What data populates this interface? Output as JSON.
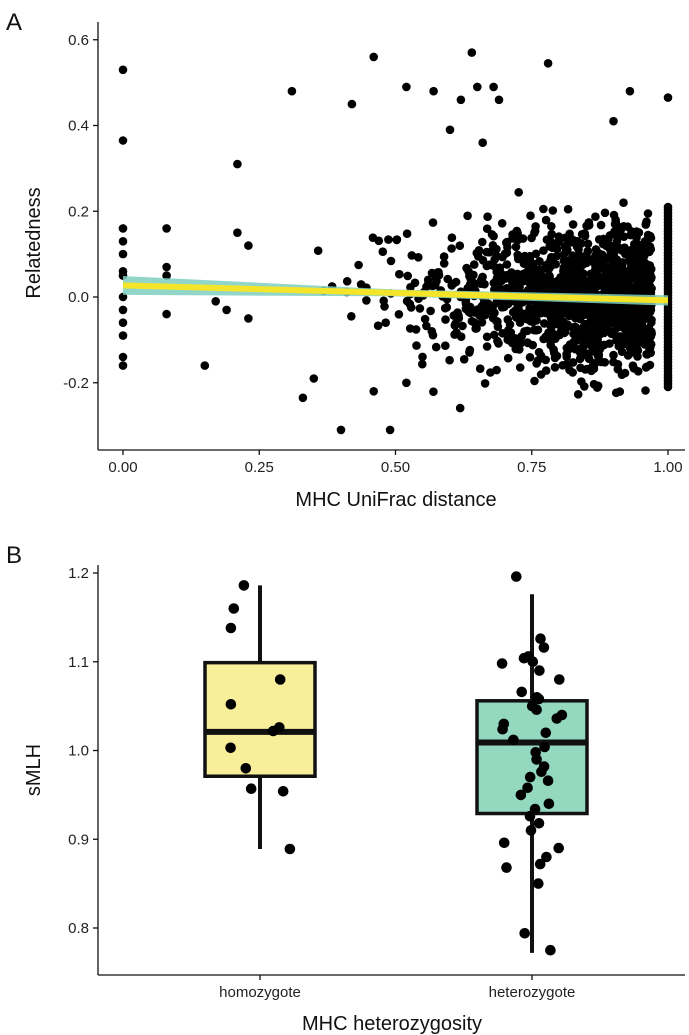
{
  "chart_data": [
    {
      "type": "scatter",
      "panel_label": "A",
      "xlabel": "MHC UniFrac distance",
      "ylabel": "Relatedness",
      "xlim": [
        0,
        1
      ],
      "ylim": [
        -0.35,
        0.62
      ],
      "x_ticks": [
        0,
        0.25,
        0.5,
        0.75,
        1
      ],
      "x_tick_labels": [
        "0.00",
        "0.25",
        "0.50",
        "0.75",
        "1.00"
      ],
      "y_ticks": [
        -0.2,
        0,
        0.2,
        0.4,
        0.6
      ],
      "y_tick_labels": [
        "-0.2",
        "0.0",
        "0.2",
        "0.4",
        "0.6"
      ],
      "grid": false,
      "point_color": "#000000",
      "trend_line": {
        "x": [
          0,
          1
        ],
        "y": [
          0.027,
          -0.008
        ],
        "color": "#f5e52a",
        "ci_color": "#7ecfc0"
      },
      "points": [
        [
          0.0,
          0.53
        ],
        [
          0.0,
          0.365
        ],
        [
          0.0,
          0.16
        ],
        [
          0.0,
          0.13
        ],
        [
          0.0,
          0.1
        ],
        [
          0.0,
          0.06
        ],
        [
          0.0,
          0.05
        ],
        [
          0.0,
          0.0
        ],
        [
          0.0,
          -0.03
        ],
        [
          0.0,
          -0.06
        ],
        [
          0.0,
          -0.09
        ],
        [
          0.0,
          -0.14
        ],
        [
          0.0,
          -0.16
        ],
        [
          0.08,
          0.16
        ],
        [
          0.08,
          0.07
        ],
        [
          0.08,
          0.05
        ],
        [
          0.08,
          -0.04
        ],
        [
          0.15,
          -0.16
        ],
        [
          0.17,
          -0.01
        ],
        [
          0.19,
          -0.03
        ],
        [
          0.21,
          0.31
        ],
        [
          0.21,
          0.15
        ],
        [
          0.23,
          0.12
        ],
        [
          0.23,
          -0.05
        ],
        [
          0.31,
          0.48
        ],
        [
          0.42,
          0.45
        ],
        [
          0.46,
          0.56
        ],
        [
          0.52,
          0.49
        ],
        [
          0.57,
          0.48
        ],
        [
          0.6,
          0.39
        ],
        [
          0.62,
          0.46
        ],
        [
          0.64,
          0.57
        ],
        [
          0.65,
          0.49
        ],
        [
          0.66,
          0.36
        ],
        [
          0.68,
          0.49
        ],
        [
          0.69,
          0.46
        ],
        [
          0.78,
          0.545
        ],
        [
          0.9,
          0.41
        ],
        [
          0.93,
          0.48
        ],
        [
          1.0,
          0.465
        ],
        [
          0.4,
          -0.31
        ],
        [
          0.49,
          -0.31
        ],
        [
          0.33,
          -0.235
        ],
        [
          0.35,
          -0.19
        ],
        [
          0.46,
          -0.22
        ],
        [
          0.52,
          -0.2
        ]
      ],
      "point_cloud": {
        "n": 1400,
        "x_range": [
          0.25,
          0.97
        ],
        "y_center": 0.0,
        "y_spread": 0.08,
        "x_mode": 0.85
      },
      "edge_column": {
        "x": 1.0,
        "n": 60,
        "y_range": [
          -0.21,
          0.21
        ]
      }
    },
    {
      "type": "box",
      "panel_label": "B",
      "xlabel": "MHC heterozygosity",
      "ylabel": "sMLH",
      "ylim": [
        0.76,
        1.22
      ],
      "y_ticks": [
        0.8,
        0.9,
        1.0,
        1.1,
        1.2
      ],
      "y_tick_labels": [
        "0.8",
        "0.9",
        "1.0",
        "1.1",
        "1.2"
      ],
      "categories": [
        "homozygote",
        "heterozygote"
      ],
      "boxes": [
        {
          "name": "homozygote",
          "color": "#f9ef9b",
          "q1": 0.971,
          "median": 1.021,
          "q3": 1.099,
          "whisker_low": 0.889,
          "whisker_high": 1.186,
          "points": [
            1.186,
            1.16,
            1.138,
            1.08,
            1.052,
            1.026,
            1.022,
            1.003,
            0.98,
            0.957,
            0.954,
            0.889
          ]
        },
        {
          "name": "heterozygote",
          "color": "#93d8bf",
          "q1": 0.929,
          "median": 1.009,
          "q3": 1.056,
          "whisker_low": 0.772,
          "whisker_high": 1.176,
          "points": [
            1.196,
            1.126,
            1.116,
            1.106,
            1.104,
            1.1,
            1.098,
            1.09,
            1.08,
            1.066,
            1.06,
            1.058,
            1.05,
            1.046,
            1.04,
            1.036,
            1.03,
            1.024,
            1.02,
            1.012,
            1.004,
            0.998,
            0.99,
            0.982,
            0.976,
            0.97,
            0.966,
            0.958,
            0.95,
            0.94,
            0.934,
            0.926,
            0.918,
            0.91,
            0.896,
            0.89,
            0.88,
            0.872,
            0.868,
            0.85,
            0.794,
            0.775
          ]
        }
      ]
    }
  ]
}
